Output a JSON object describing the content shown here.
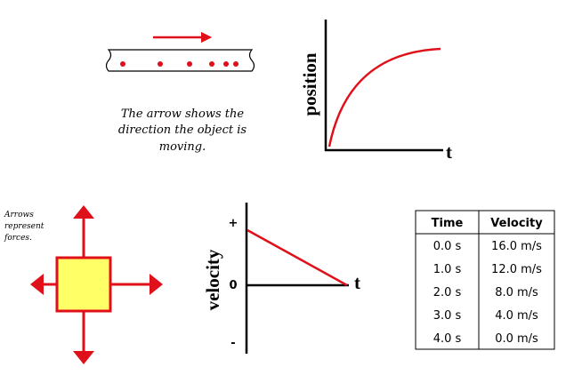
{
  "motion_diagram": {
    "caption": [
      "The arrow shows the",
      "direction the object is",
      "moving."
    ]
  },
  "position_graph": {
    "y_label": "position",
    "x_label": "t"
  },
  "force_diagram": {
    "caption": [
      "Arrows",
      "represent",
      "forces."
    ]
  },
  "velocity_graph": {
    "y_label": "velocity",
    "x_label": "t",
    "y_marks": [
      "+",
      "0",
      "-"
    ]
  },
  "table": {
    "header": [
      "Time",
      "Velocity"
    ],
    "rows": [
      [
        "0.0 s",
        "16.0 m/s"
      ],
      [
        "1.0 s",
        "12.0 m/s"
      ],
      [
        "2.0 s",
        "8.0 m/s"
      ],
      [
        "3.0 s",
        "4.0 m/s"
      ],
      [
        "4.0 s",
        "0.0 m/s"
      ]
    ]
  }
}
